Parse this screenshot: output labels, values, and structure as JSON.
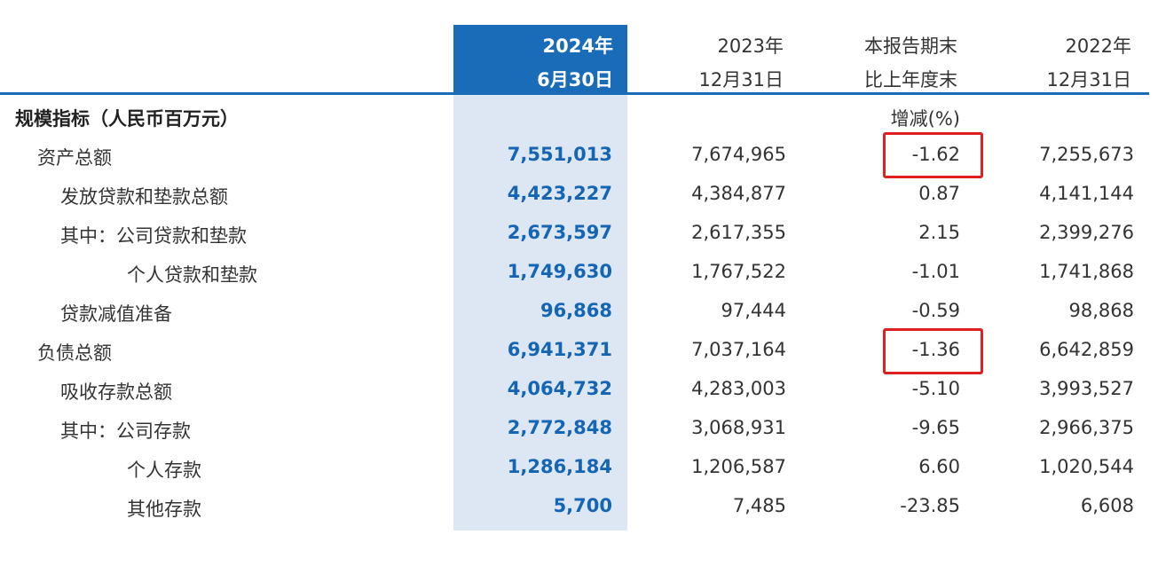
{
  "header": {
    "col_2024": {
      "line1": "2024年",
      "line2": "6月30日"
    },
    "col_2023": {
      "line1": "2023年",
      "line2": "12月31日"
    },
    "col_change": {
      "line1": "本报告期末",
      "line2": "比上年度末",
      "line3": "增减(%)"
    },
    "col_2022": {
      "line1": "2022年",
      "line2": "12月31日"
    }
  },
  "section_title": "规模指标（人民币百万元）",
  "rows": [
    {
      "label": "资产总额",
      "v2024": "7,551,013",
      "v2023": "7,674,965",
      "change": "-1.62",
      "v2022": "7,255,673",
      "highlighted": true
    },
    {
      "label": "发放贷款和垫款总额",
      "v2024": "4,423,227",
      "v2023": "4,384,877",
      "change": "0.87",
      "v2022": "4,141,144"
    },
    {
      "label": "其中：公司贷款和垫款",
      "v2024": "2,673,597",
      "v2023": "2,617,355",
      "change": "2.15",
      "v2022": "2,399,276"
    },
    {
      "label": "个人贷款和垫款",
      "v2024": "1,749,630",
      "v2023": "1,767,522",
      "change": "-1.01",
      "v2022": "1,741,868"
    },
    {
      "label": "贷款减值准备",
      "v2024": "96,868",
      "v2023": "97,444",
      "change": "-0.59",
      "v2022": "98,868"
    },
    {
      "label": "负债总额",
      "v2024": "6,941,371",
      "v2023": "7,037,164",
      "change": "-1.36",
      "v2022": "6,642,859",
      "highlighted": true
    },
    {
      "label": "吸收存款总额",
      "v2024": "4,064,732",
      "v2023": "4,283,003",
      "change": "-5.10",
      "v2022": "3,993,527"
    },
    {
      "label": "其中：公司存款",
      "v2024": "2,772,848",
      "v2023": "3,068,931",
      "change": "-9.65",
      "v2022": "2,966,375"
    },
    {
      "label": "个人存款",
      "v2024": "1,286,184",
      "v2023": "1,206,587",
      "change": "6.60",
      "v2022": "1,020,544"
    },
    {
      "label": "其他存款",
      "v2024": "5,700",
      "v2023": "7,485",
      "change": "-23.85",
      "v2022": "6,608"
    }
  ],
  "colors": {
    "accent": "#1a6bb8",
    "highlight_bg": "#dde7f3",
    "value_blue": "#1565b5",
    "mark_red": "#e02020"
  }
}
